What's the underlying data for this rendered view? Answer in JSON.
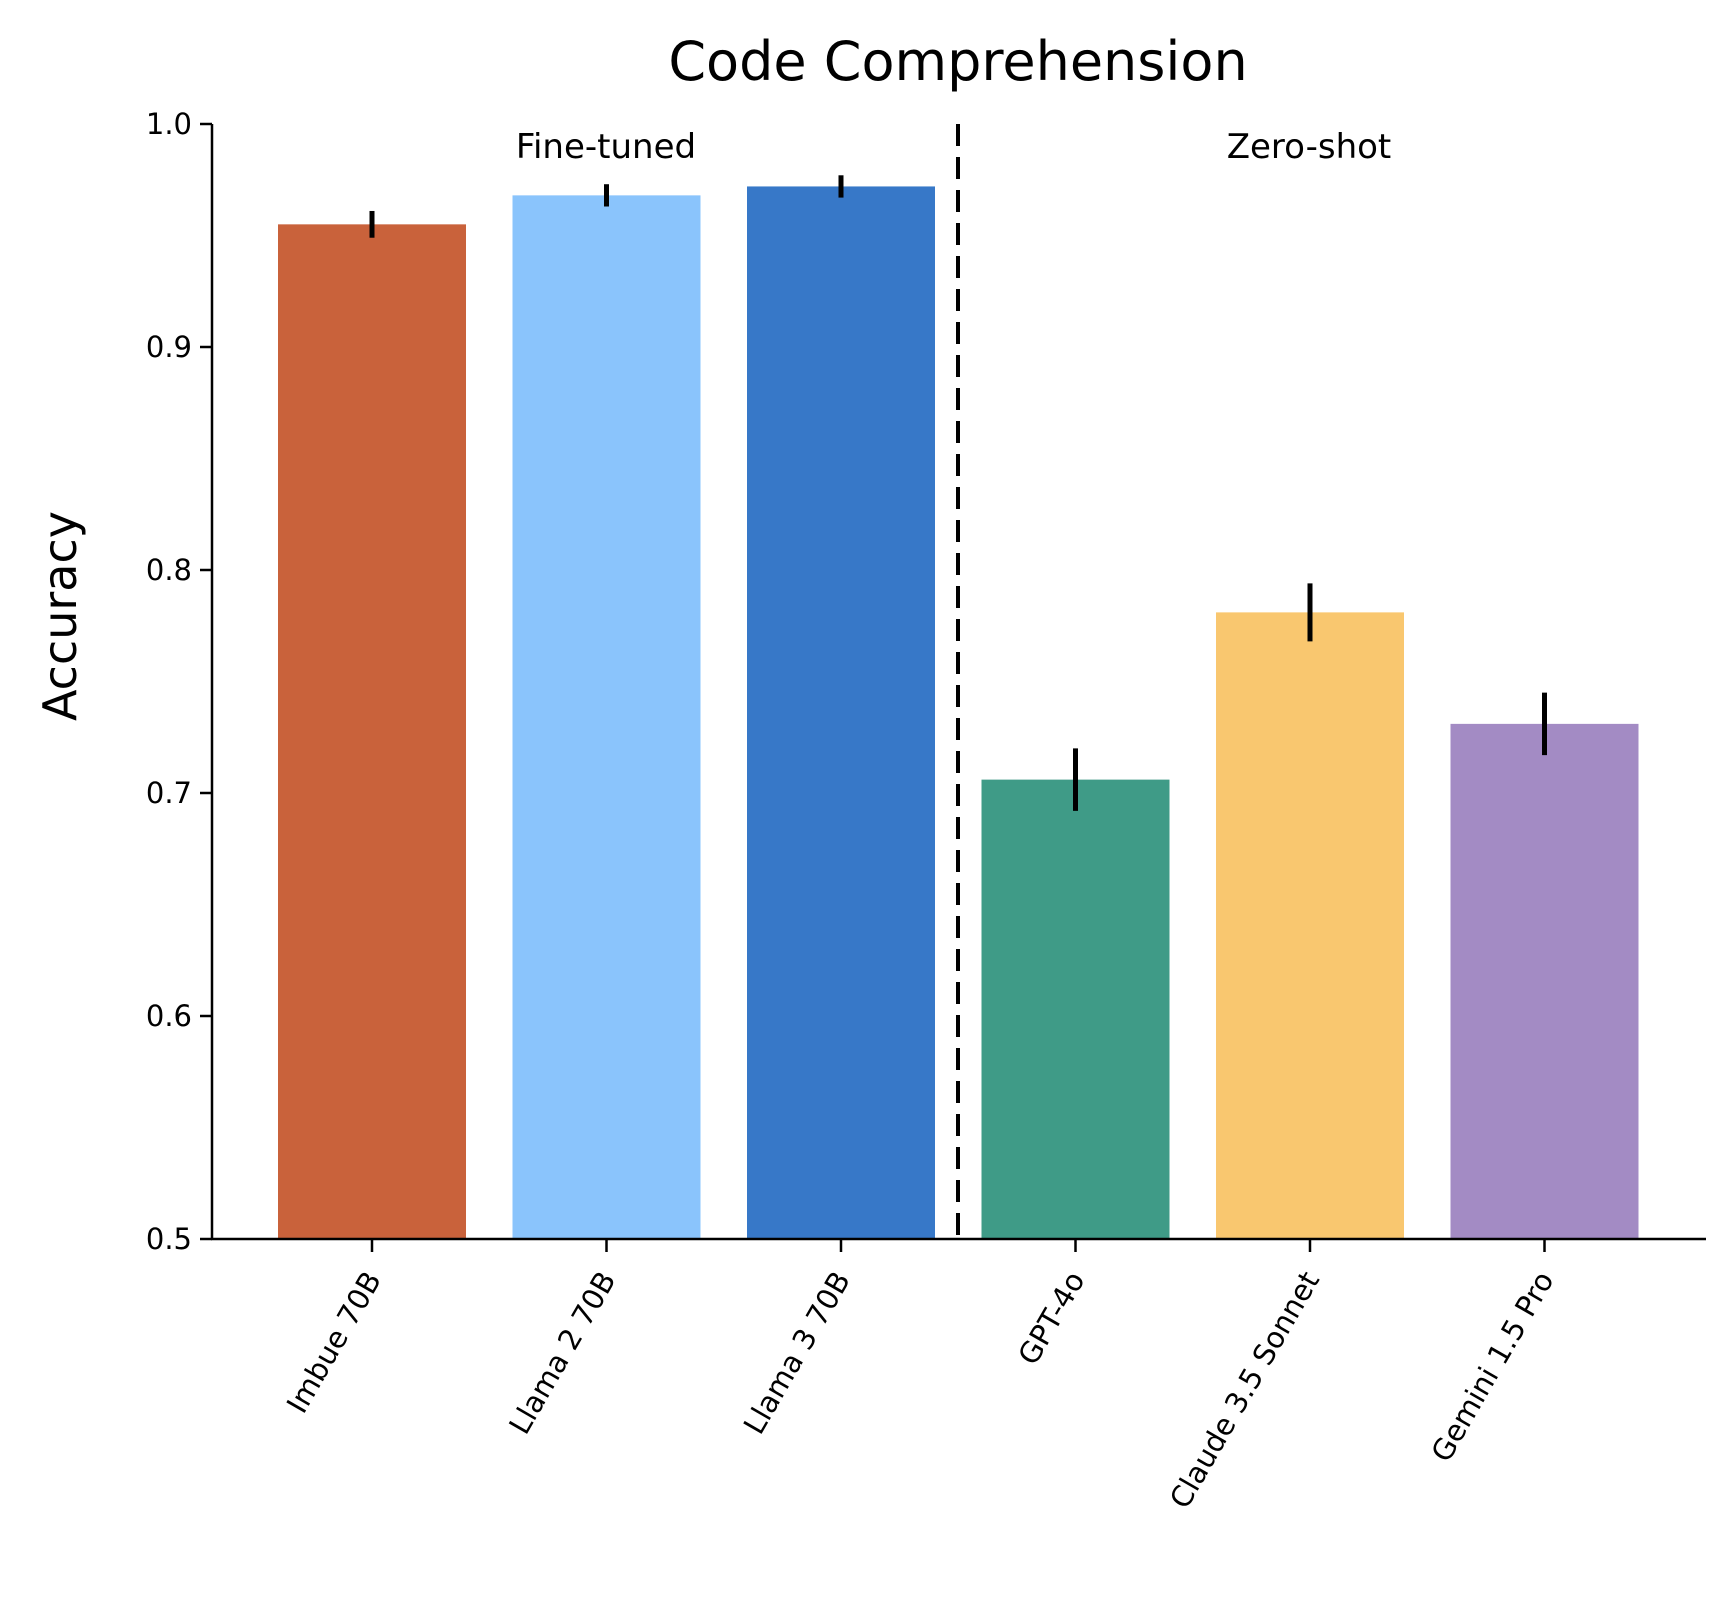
{
  "chart_data": {
    "type": "bar",
    "title": "Code Comprehension",
    "xlabel": "",
    "ylabel": "Accuracy",
    "ylim": [
      0.5,
      1.0
    ],
    "yticks": [
      "0.5",
      "0.6",
      "0.7",
      "0.8",
      "0.9",
      "1.0"
    ],
    "ytick_values": [
      0.5,
      0.6,
      0.7,
      0.8,
      0.9,
      1.0
    ],
    "grid": false,
    "categories": [
      "Imbue 70B",
      "Llama 2 70B",
      "Llama 3 70B",
      "GPT-4o",
      "Claude 3.5 Sonnet",
      "Gemini 1.5 Pro"
    ],
    "values": [
      0.955,
      0.968,
      0.972,
      0.706,
      0.781,
      0.731
    ],
    "errors": [
      0.006,
      0.005,
      0.005,
      0.014,
      0.013,
      0.014
    ],
    "colors": [
      "#c9623b",
      "#8ac4fc",
      "#3778c8",
      "#3f9b87",
      "#f9c76f",
      "#a38bc4"
    ],
    "groups": [
      {
        "label": "Fine-tuned",
        "categories": [
          "Imbue 70B",
          "Llama 2 70B",
          "Llama 3 70B"
        ]
      },
      {
        "label": "Zero-shot",
        "categories": [
          "GPT-4o",
          "Claude 3.5 Sonnet",
          "Gemini 1.5 Pro"
        ]
      }
    ],
    "divider": "dashed vertical line between Llama 3 70B and GPT-4o"
  }
}
